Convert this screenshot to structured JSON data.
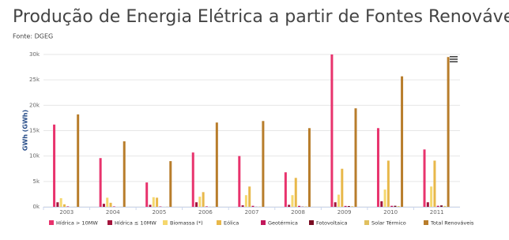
{
  "chart_data": {
    "type": "bar",
    "title": "Produção de Energia Elétrica a partir de Fontes Renováveis",
    "subtitle": "Fonte: DGEG",
    "y_label": "GWh (GWh)",
    "categories": [
      "2003",
      "2004",
      "2005",
      "2006",
      "2007",
      "2008",
      "2009",
      "2010",
      "2011"
    ],
    "series": [
      {
        "name": "Hídrica > 10MW",
        "color": "#e8336d",
        "values": [
          16200,
          9600,
          4800,
          10700,
          10000,
          6800,
          30000,
          15500,
          11300
        ]
      },
      {
        "name": "Hídrica ≤ 10MW",
        "color": "#a3143c",
        "values": [
          900,
          600,
          400,
          900,
          300,
          400,
          900,
          1100,
          900
        ]
      },
      {
        "name": "Biomassa (*)",
        "color": "#f5d76e",
        "values": [
          1700,
          1800,
          1900,
          2000,
          2300,
          2300,
          2400,
          3400,
          4000
        ]
      },
      {
        "name": "Eólica",
        "color": "#e8b84a",
        "values": [
          500,
          800,
          1800,
          2900,
          4000,
          5700,
          7500,
          9100,
          9100
        ]
      },
      {
        "name": "Geotérmica",
        "color": "#c2185b",
        "values": [
          90,
          80,
          70,
          90,
          200,
          190,
          180,
          200,
          210
        ]
      },
      {
        "name": "Fotovoltaica",
        "color": "#7a0c22",
        "values": [
          0,
          0,
          0,
          10,
          20,
          40,
          160,
          210,
          280
        ]
      },
      {
        "name": "Solar Térmico",
        "color": "#e0c060",
        "values": [
          20,
          20,
          30,
          40,
          50,
          80,
          120,
          150,
          180
        ]
      },
      {
        "name": "Total Renováveis",
        "color": "#b87d2b",
        "values": [
          18200,
          12900,
          9000,
          16600,
          16900,
          15500,
          19400,
          25700,
          29500
        ]
      }
    ],
    "ylim": [
      0,
      30000
    ],
    "yticks": [
      {
        "value": 0,
        "label": "0k"
      },
      {
        "value": 5000,
        "label": "5k"
      },
      {
        "value": 10000,
        "label": "10k"
      },
      {
        "value": 15000,
        "label": "15k"
      },
      {
        "value": 20000,
        "label": "20k"
      },
      {
        "value": 25000,
        "label": "25k"
      },
      {
        "value": 30000,
        "label": "30k"
      }
    ],
    "grid": true
  }
}
